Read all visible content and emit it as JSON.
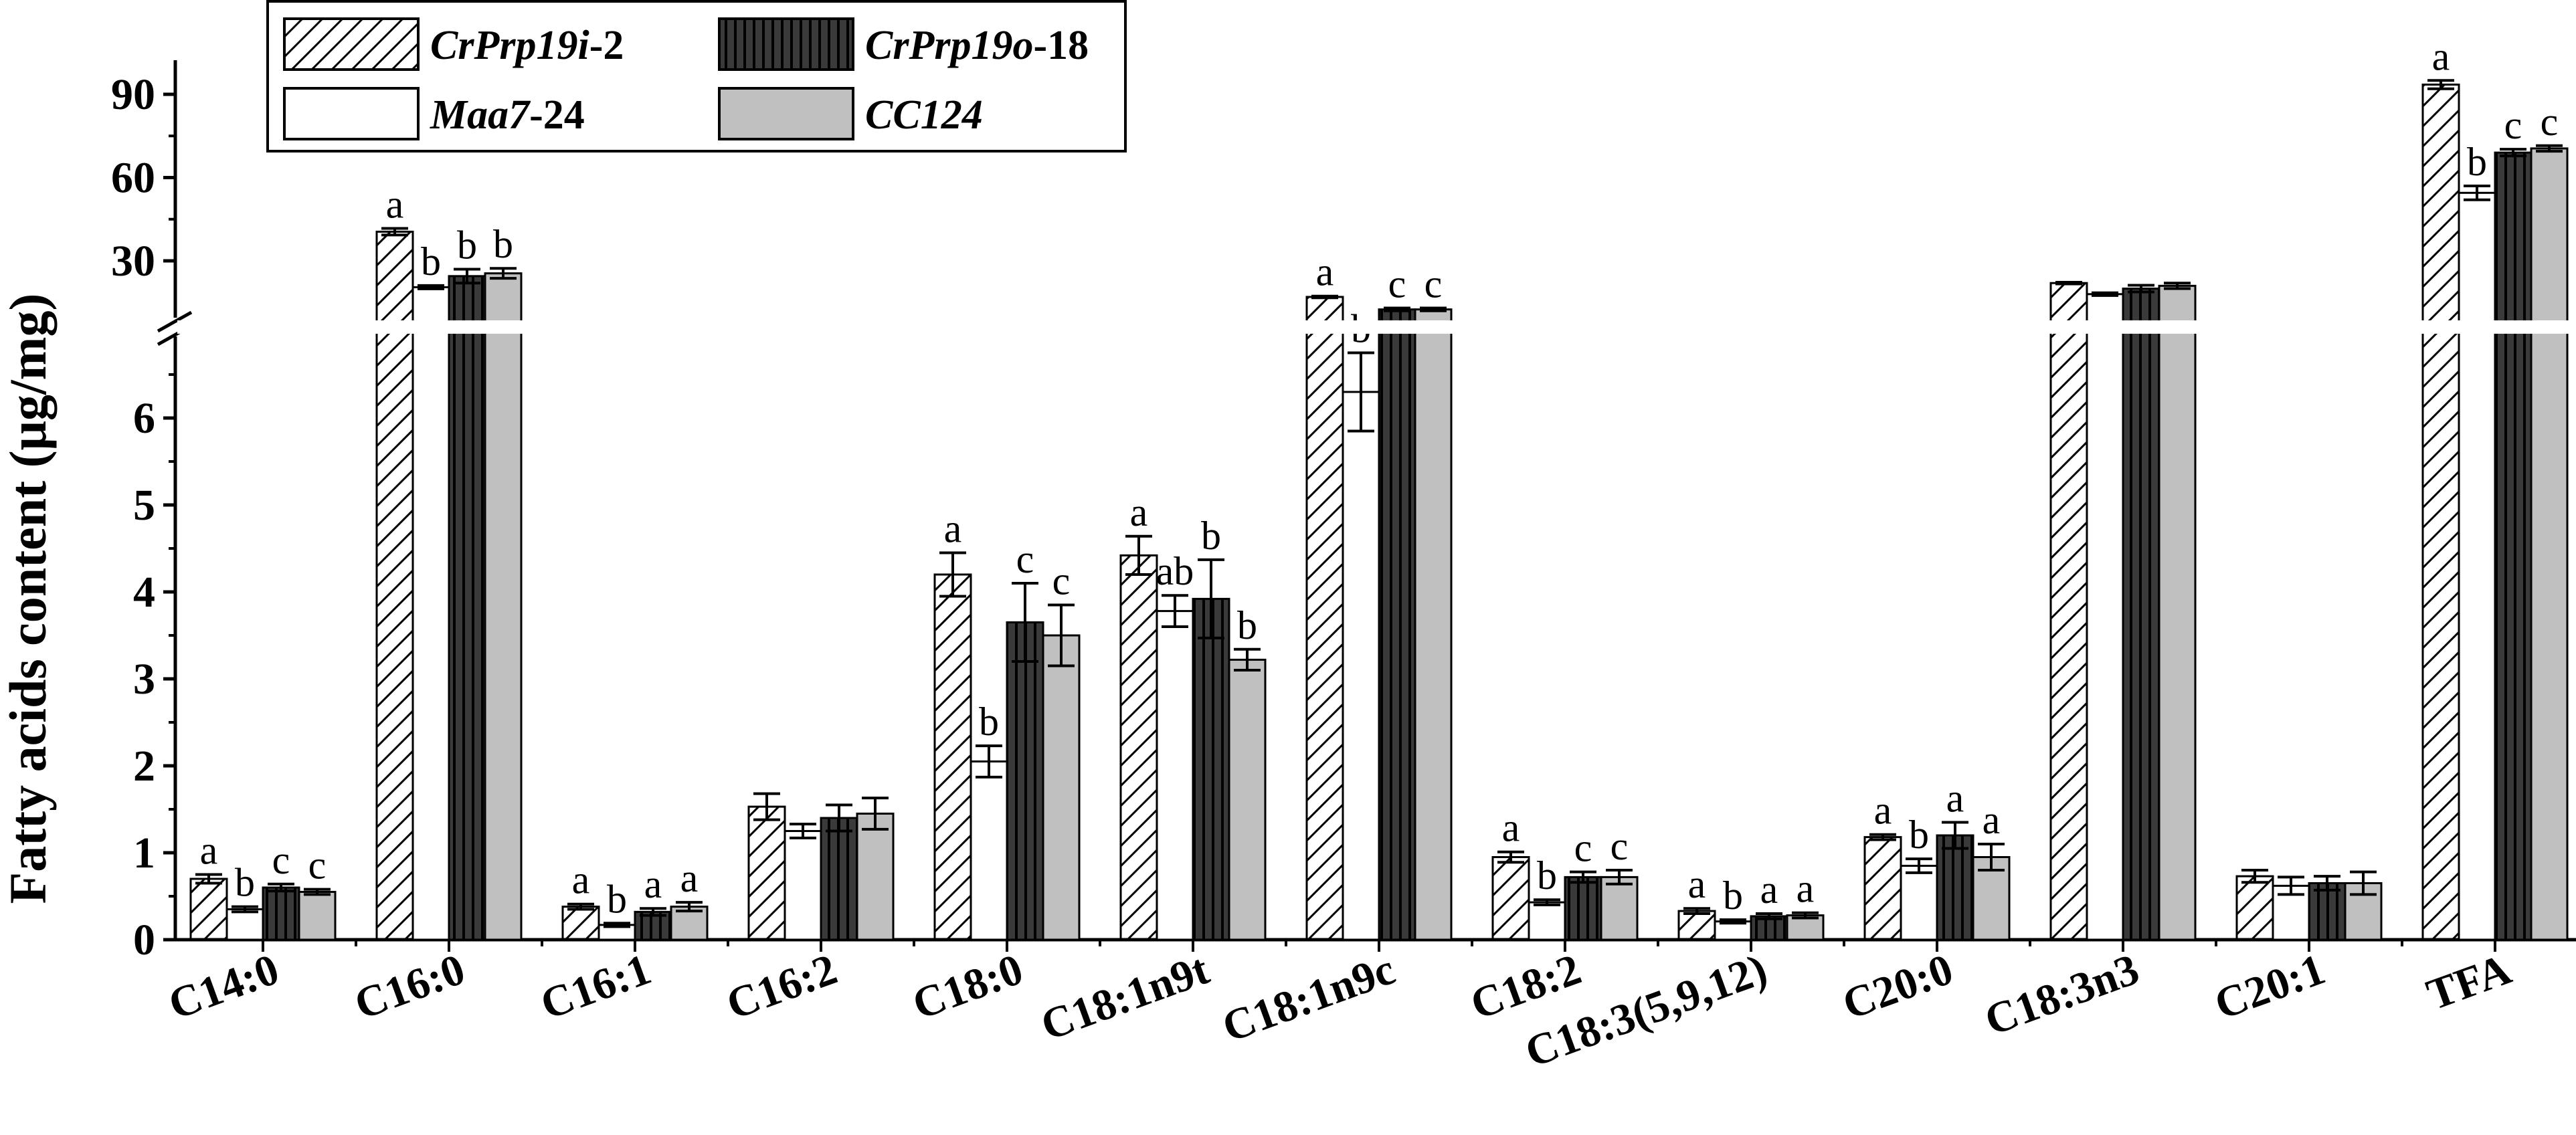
{
  "chart_data": {
    "type": "bar",
    "ylabel": "Fatty acids content (μg/mg)",
    "xlabel": "",
    "title": "",
    "axis_break": {
      "lower_range": [
        0,
        7
      ],
      "upper_range": [
        15,
        100
      ]
    },
    "y_ticks": [
      "0",
      "1",
      "2",
      "3",
      "4",
      "5",
      "6",
      "30",
      "60",
      "90"
    ],
    "y_tick_values": [
      0,
      1,
      2,
      3,
      4,
      5,
      6,
      30,
      60,
      90
    ],
    "categories": [
      "C14:0",
      "C16:0",
      "C16:1",
      "C16:2",
      "C18:0",
      "C18:1n9t",
      "C18:1n9c",
      "C18:2",
      "C18:3(5,9,12)",
      "C20:0",
      "C18:3n3",
      "C20:1",
      "TFA"
    ],
    "legend": {
      "placement": "top-left, two columns"
    },
    "series": [
      {
        "name_main": "CrPrp19i",
        "name_suffix": "-2",
        "pattern": "diagonal-hatch",
        "color": "#ffffff",
        "values": [
          0.7,
          40.5,
          0.38,
          1.53,
          4.2,
          4.42,
          17.0,
          0.95,
          0.33,
          1.18,
          22.0,
          0.73,
          93.5
        ],
        "errors": [
          0.05,
          1.2,
          0.03,
          0.15,
          0.25,
          0.22,
          0.3,
          0.06,
          0.03,
          0.03,
          0.3,
          0.07,
          1.5
        ],
        "letters": [
          "a",
          "a",
          "a",
          "",
          "a",
          "a",
          "a",
          "a",
          "a",
          "a",
          "",
          "",
          "a"
        ]
      },
      {
        "name_main": "Maa7",
        "name_suffix": "-24",
        "pattern": "none",
        "color": "#ffffff",
        "values": [
          0.35,
          20.5,
          0.17,
          1.25,
          2.05,
          3.78,
          6.3,
          0.43,
          0.21,
          0.85,
          18.0,
          0.62,
          54.5
        ],
        "errors": [
          0.03,
          0.6,
          0.02,
          0.08,
          0.18,
          0.18,
          0.45,
          0.03,
          0.02,
          0.08,
          0.5,
          0.1,
          2.5
        ],
        "letters": [
          "b",
          "b",
          "b",
          "",
          "b",
          "ab",
          "b",
          "b",
          "b",
          "b",
          "",
          "",
          "b"
        ]
      },
      {
        "name_main": "CrPrp19o",
        "name_suffix": "-18",
        "pattern": "vertical-stripes",
        "color": "#3a3a3a",
        "values": [
          0.6,
          24.5,
          0.32,
          1.4,
          3.65,
          3.92,
          12.5,
          0.72,
          0.27,
          1.2,
          20.0,
          0.65,
          69.0
        ],
        "errors": [
          0.04,
          2.5,
          0.04,
          0.15,
          0.45,
          0.45,
          0.5,
          0.06,
          0.03,
          0.15,
          1.2,
          0.08,
          1.2
        ],
        "letters": [
          "c",
          "b",
          "a",
          "",
          "c",
          "b",
          "c",
          "c",
          "a",
          "a",
          "",
          "",
          "c"
        ]
      },
      {
        "name_main": "CC124",
        "name_suffix": "",
        "pattern": "none",
        "color": "#c0c0c0",
        "values": [
          0.55,
          25.5,
          0.38,
          1.45,
          3.5,
          3.22,
          12.5,
          0.72,
          0.28,
          0.95,
          21.0,
          0.65,
          70.5
        ],
        "errors": [
          0.03,
          1.8,
          0.05,
          0.18,
          0.35,
          0.12,
          0.5,
          0.08,
          0.03,
          0.15,
          1.0,
          0.13,
          1.0
        ],
        "letters": [
          "c",
          "b",
          "a",
          "",
          "c",
          "b",
          "c",
          "c",
          "a",
          "a",
          "",
          "",
          "c"
        ]
      }
    ]
  }
}
